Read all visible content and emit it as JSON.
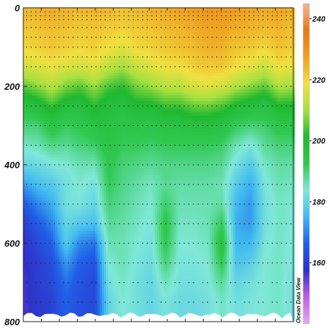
{
  "chart_data": {
    "type": "heatmap",
    "title": "",
    "xlabel": "",
    "ylabel": "",
    "y_axis": {
      "inverted": true,
      "range": [
        0,
        800
      ],
      "ticks": [
        0,
        200,
        400,
        600,
        800
      ]
    },
    "x_axis": {
      "ticks_labeled": false
    },
    "colorbar": {
      "range": [
        140,
        245
      ],
      "ticks": [
        160,
        180,
        200,
        220,
        240
      ],
      "colors": [
        "#e6a8f0",
        "#c060e0",
        "#3030c8",
        "#2060e8",
        "#40b8f0",
        "#80e8d8",
        "#30c850",
        "#20b830",
        "#a8e040",
        "#f0e040",
        "#f0a020",
        "#e87818",
        "#f0b898"
      ]
    },
    "depth_levels": [
      0,
      10,
      20,
      30,
      50,
      75,
      100,
      125,
      150,
      200,
      250,
      300,
      350,
      400,
      450,
      500,
      550,
      600,
      650,
      700,
      750
    ],
    "value_grid": {
      "depths": [
        0,
        50,
        100,
        150,
        200,
        250,
        300,
        350,
        400,
        450,
        500,
        550,
        600,
        650,
        700,
        750,
        800
      ],
      "columns": [
        [
          224,
          222,
          220,
          215,
          205,
          195,
          190,
          185,
          180,
          172,
          165,
          160,
          158,
          157,
          156,
          156,
          156
        ],
        [
          225,
          223,
          221,
          216,
          208,
          198,
          190,
          186,
          181,
          176,
          170,
          165,
          162,
          160,
          160,
          159,
          159
        ],
        [
          226,
          224,
          222,
          218,
          212,
          203,
          195,
          189,
          183,
          178,
          174,
          170,
          166,
          163,
          162,
          161,
          161
        ],
        [
          225,
          223,
          221,
          216,
          207,
          198,
          192,
          188,
          184,
          182,
          182,
          180,
          178,
          172,
          168,
          166,
          166
        ],
        [
          224,
          222,
          220,
          215,
          205,
          197,
          193,
          190,
          186,
          184,
          183,
          178,
          170,
          166,
          164,
          163,
          163
        ],
        [
          225,
          223,
          221,
          217,
          209,
          202,
          196,
          191,
          186,
          182,
          180,
          176,
          168,
          164,
          162,
          162,
          162
        ],
        [
          224,
          222,
          219,
          213,
          204,
          198,
          196,
          195,
          193,
          192,
          190,
          188,
          186,
          184,
          182,
          180,
          180
        ],
        [
          223,
          221,
          217,
          210,
          202,
          197,
          194,
          192,
          190,
          189,
          188,
          187,
          186,
          186,
          185,
          184,
          184
        ],
        [
          224,
          222,
          220,
          214,
          207,
          200,
          195,
          192,
          189,
          187,
          186,
          185,
          184,
          183,
          182,
          182,
          182
        ],
        [
          225,
          223,
          221,
          216,
          209,
          200,
          194,
          191,
          188,
          185,
          184,
          183,
          182,
          181,
          180,
          180,
          180
        ],
        [
          226,
          224,
          222,
          219,
          212,
          203,
          196,
          192,
          189,
          188,
          191,
          194,
          193,
          190,
          186,
          183,
          183
        ],
        [
          227,
          225,
          223,
          219,
          212,
          203,
          196,
          192,
          189,
          187,
          186,
          185,
          184,
          183,
          182,
          181,
          181
        ],
        [
          228,
          226,
          224,
          221,
          216,
          206,
          197,
          192,
          189,
          187,
          186,
          185,
          184,
          183,
          182,
          181,
          181
        ],
        [
          229,
          227,
          225,
          222,
          217,
          206,
          197,
          192,
          189,
          187,
          186,
          186,
          185,
          184,
          183,
          182,
          182
        ],
        [
          229,
          227,
          225,
          222,
          215,
          204,
          196,
          191,
          188,
          186,
          187,
          192,
          196,
          193,
          188,
          185,
          185
        ],
        [
          228,
          226,
          223,
          219,
          211,
          200,
          192,
          186,
          182,
          178,
          175,
          174,
          175,
          177,
          180,
          182,
          182
        ],
        [
          227,
          225,
          222,
          217,
          208,
          198,
          190,
          183,
          178,
          174,
          172,
          172,
          175,
          179,
          182,
          183,
          183
        ],
        [
          226,
          224,
          220,
          214,
          205,
          196,
          191,
          188,
          185,
          183,
          182,
          182,
          183,
          184,
          184,
          184,
          184
        ],
        [
          227,
          225,
          223,
          219,
          211,
          201,
          194,
          190,
          187,
          186,
          185,
          185,
          185,
          185,
          185,
          185,
          185
        ],
        [
          225,
          223,
          221,
          217,
          210,
          201,
          194,
          190,
          187,
          185,
          184,
          184,
          183,
          183,
          182,
          182,
          182
        ]
      ]
    }
  },
  "watermark": {
    "text": "Ocean Data View"
  }
}
